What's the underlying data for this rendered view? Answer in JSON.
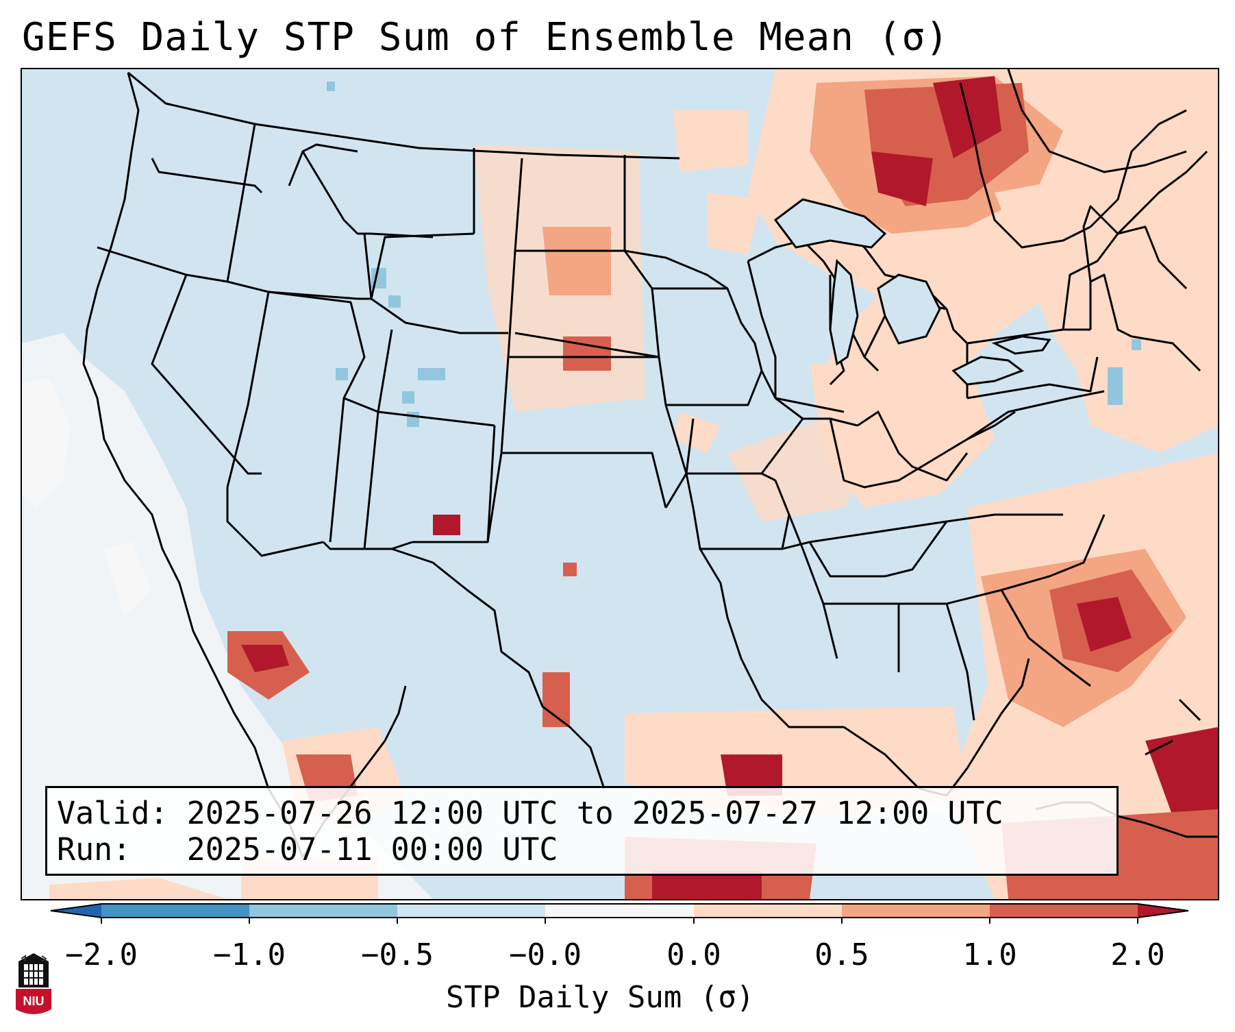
{
  "title": "GEFS Daily STP Sum of Ensemble Mean (σ)",
  "info": {
    "valid_line": "Valid: 2025-07-26 12:00 UTC to 2025-07-27 12:00 UTC",
    "run_line": "Run:   2025-07-11 00:00 UTC"
  },
  "colorbar": {
    "label": "STP Daily Sum (σ)",
    "tick_labels": [
      "−2.0",
      "−1.0",
      "−0.5",
      "−0.0",
      "0.0",
      "0.5",
      "1.0",
      "2.0"
    ],
    "bins": [
      {
        "range": "< -2.0",
        "color": "#2166ac"
      },
      {
        "range": "-2.0 to -1.0",
        "color": "#4393c3"
      },
      {
        "range": "-1.0 to -0.5",
        "color": "#92c5de"
      },
      {
        "range": "-0.5 to -0.0",
        "color": "#d1e5f0"
      },
      {
        "range": "-0.0 to 0.0",
        "color": "#f7f7f7"
      },
      {
        "range": "0.0 to 0.5",
        "color": "#fddbc7"
      },
      {
        "range": "0.5 to 1.0",
        "color": "#f4a582"
      },
      {
        "range": "1.0 to 2.0",
        "color": "#d6604d"
      },
      {
        "range": "> 2.0",
        "color": "#b2182b"
      }
    ]
  },
  "logo": {
    "text": "NIU",
    "name": "Northern Illinois University"
  },
  "map": {
    "region": "CONUS",
    "features": [
      "state-borders",
      "country-borders",
      "coastlines",
      "great-lakes"
    ]
  }
}
